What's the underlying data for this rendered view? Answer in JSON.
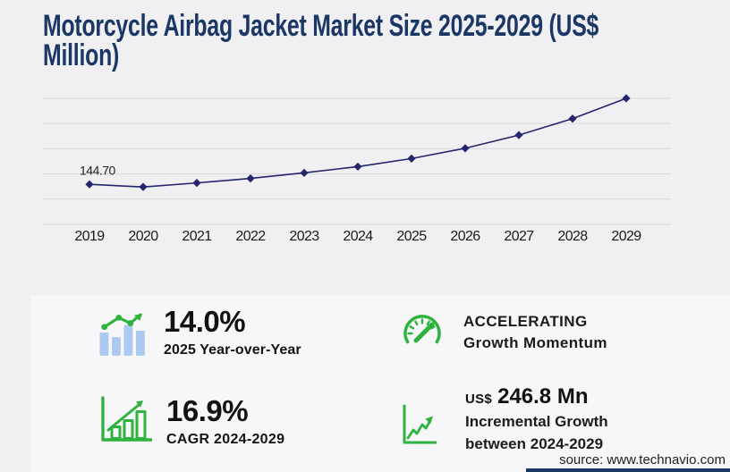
{
  "title": {
    "line1": "Motorcycle Airbag Jacket Market Size 2025-2029 (US$",
    "line2": "Million)"
  },
  "chart_data": {
    "type": "line",
    "title": "Motorcycle Airbag Jacket Market Size 2025-2029 (US$ Million)",
    "series_name": "Market size (US$ Million)",
    "x": [
      2019,
      2020,
      2021,
      2022,
      2023,
      2024,
      2025,
      2026,
      2027,
      2028,
      2029
    ],
    "values": [
      144.7,
      135.2,
      149.8,
      166.0,
      186.2,
      208.6,
      237.8,
      275.0,
      322.5,
      382.0,
      455.4
    ],
    "first_point_label": "144.70",
    "xlabel": "",
    "ylabel": "",
    "ylim": [
      0,
      455.4
    ],
    "gridline_count": 6,
    "grid": true,
    "legend_position": "none",
    "line_color": "#25246d",
    "marker": "diamond",
    "grid_color": "#d8d8da",
    "tick_label_color": "#1a1a1a",
    "point_label_color": "#222222"
  },
  "stats": [
    {
      "icon": "bar-trend-icon",
      "value": "14.0%",
      "label": "2025 Year-over-Year"
    },
    {
      "icon": "gauge-icon",
      "line1": "ACCELERATING",
      "line2": "Growth Momentum"
    },
    {
      "icon": "bar-growth-icon",
      "value": "16.9%",
      "label": "CAGR 2024-2029"
    },
    {
      "icon": "line-growth-icon",
      "prefix": "US$",
      "value": "246.8 Mn",
      "label1": "Incremental Growth",
      "label2": "between 2024-2029"
    }
  ],
  "source": "source: www.technavio.com",
  "colors": {
    "navy": "#1b3766",
    "accent_green": "#2eb33e",
    "bar_blue": "#abc9f1",
    "background": "#f0eff1",
    "panel": "#f7f6f8"
  }
}
